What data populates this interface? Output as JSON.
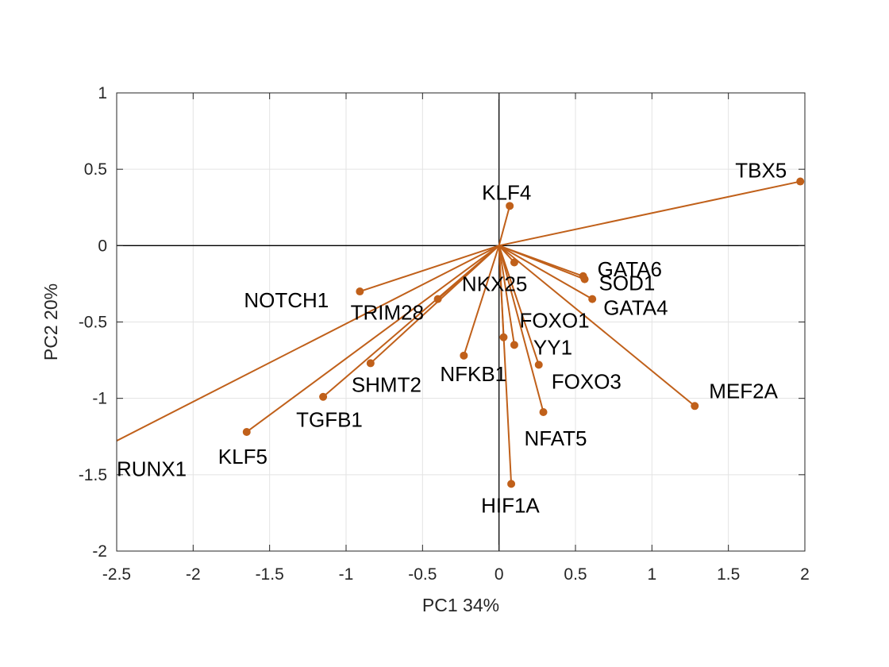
{
  "chart_data": {
    "type": "biplot",
    "xlabel": "PC1 34%",
    "ylabel": "PC2 20%",
    "xlim": [
      -2.5,
      2
    ],
    "ylim": [
      -2,
      1
    ],
    "xticks": [
      -2.5,
      -2,
      -1.5,
      -1,
      -0.5,
      0,
      0.5,
      1,
      1.5,
      2
    ],
    "yticks": [
      -2,
      -1.5,
      -1,
      -0.5,
      0,
      0.5,
      1
    ],
    "xtick_labels": [
      "-2.5",
      "-2",
      "-1.5",
      "-1",
      "-0.5",
      "0",
      "0.5",
      "1",
      "1.5",
      "2"
    ],
    "ytick_labels": [
      "-2",
      "-1.5",
      "-1",
      "-0.5",
      "0",
      "0.5",
      "1"
    ],
    "grid": true,
    "vector_color": "#C0601A",
    "points": [
      {
        "label": "TBX5",
        "x": 1.97,
        "y": 0.42,
        "marker": true
      },
      {
        "label": "KLF4",
        "x": 0.07,
        "y": 0.26,
        "marker": true
      },
      {
        "label": "GATA6",
        "x": 0.55,
        "y": -0.2,
        "marker": true
      },
      {
        "label": "SOD1",
        "x": 0.56,
        "y": -0.22,
        "marker": true
      },
      {
        "label": "GATA4",
        "x": 0.61,
        "y": -0.35,
        "marker": true
      },
      {
        "label": "NKX25",
        "x": 0.1,
        "y": -0.11,
        "marker": true
      },
      {
        "label": "NOTCH1",
        "x": -0.91,
        "y": -0.3,
        "marker": true
      },
      {
        "label": "TRIM28",
        "x": -0.4,
        "y": -0.35,
        "marker": true
      },
      {
        "label": "FOXO1",
        "x": 0.03,
        "y": -0.6,
        "marker": true
      },
      {
        "label": "YY1",
        "x": 0.1,
        "y": -0.65,
        "marker": true
      },
      {
        "label": "NFKB1",
        "x": -0.23,
        "y": -0.72,
        "marker": true
      },
      {
        "label": "SHMT2",
        "x": -0.84,
        "y": -0.77,
        "marker": true
      },
      {
        "label": "FOXO3",
        "x": 0.26,
        "y": -0.78,
        "marker": true
      },
      {
        "label": "TGFB1",
        "x": -1.15,
        "y": -0.99,
        "marker": true
      },
      {
        "label": "MEF2A",
        "x": 1.28,
        "y": -1.05,
        "marker": true
      },
      {
        "label": "NFAT5",
        "x": 0.29,
        "y": -1.09,
        "marker": true
      },
      {
        "label": "KLF5",
        "x": -1.65,
        "y": -1.22,
        "marker": true
      },
      {
        "label": "RUNX1",
        "x": -2.7,
        "y": -1.38,
        "marker": false
      },
      {
        "label": "HIF1A",
        "x": 0.08,
        "y": -1.56,
        "marker": true
      }
    ]
  }
}
